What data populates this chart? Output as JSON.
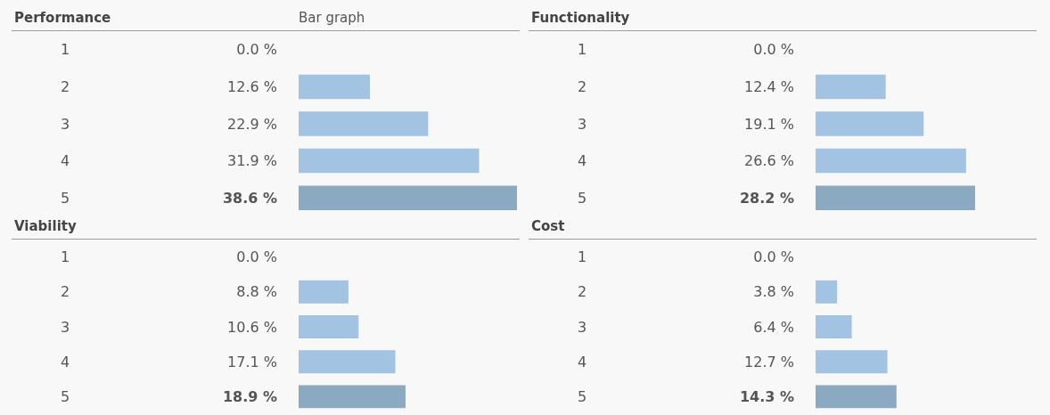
{
  "chart_data": [
    {
      "type": "bar",
      "orientation": "horizontal",
      "title": "Performance",
      "subtitle": "Bar graph",
      "categories": [
        "1",
        "2",
        "3",
        "4",
        "5"
      ],
      "values": [
        0.0,
        12.6,
        22.9,
        31.9,
        38.6
      ],
      "value_labels": [
        "0.0 %",
        "12.6 %",
        "22.9 %",
        "31.9 %",
        "38.6 %"
      ],
      "colors": [
        "#a3c3e2",
        "#a3c3e2",
        "#a3c3e2",
        "#a3c3e2",
        "#8ba9c1"
      ]
    },
    {
      "type": "bar",
      "orientation": "horizontal",
      "title": "Functionality",
      "categories": [
        "1",
        "2",
        "3",
        "4",
        "5"
      ],
      "values": [
        0.0,
        12.4,
        19.1,
        26.6,
        28.2
      ],
      "value_labels": [
        "0.0 %",
        "12.4 %",
        "19.1 %",
        "26.6 %",
        "28.2 %"
      ],
      "colors": [
        "#a3c3e2",
        "#a3c3e2",
        "#a3c3e2",
        "#a3c3e2",
        "#8ba9c1"
      ]
    },
    {
      "type": "bar",
      "orientation": "horizontal",
      "title": "Viability",
      "categories": [
        "1",
        "2",
        "3",
        "4",
        "5"
      ],
      "values": [
        0.0,
        8.8,
        10.6,
        17.1,
        18.9
      ],
      "value_labels": [
        "0.0 %",
        "8.8 %",
        "10.6 %",
        "17.1 %",
        "18.9 %"
      ],
      "colors": [
        "#a3c3e2",
        "#a3c3e2",
        "#a3c3e2",
        "#a3c3e2",
        "#8ba9c1"
      ]
    },
    {
      "type": "bar",
      "orientation": "horizontal",
      "title": "Cost",
      "categories": [
        "1",
        "2",
        "3",
        "4",
        "5"
      ],
      "values": [
        0.0,
        3.8,
        6.4,
        12.7,
        14.3
      ],
      "value_labels": [
        "0.0 %",
        "3.8 %",
        "6.4 %",
        "12.7 %",
        "14.3 %"
      ],
      "colors": [
        "#a3c3e2",
        "#a3c3e2",
        "#a3c3e2",
        "#a3c3e2",
        "#8ba9c1"
      ]
    }
  ]
}
